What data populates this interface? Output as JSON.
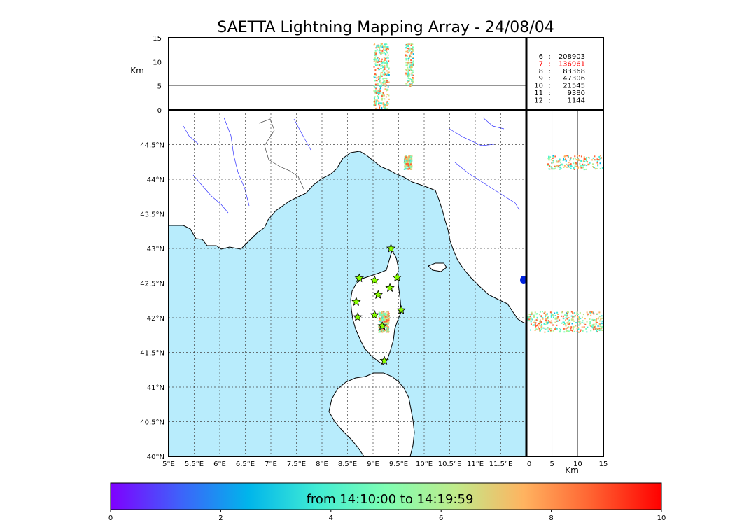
{
  "chart_data": {
    "type": "scatter",
    "title": "SAETTA Lightning Mapping Array - 24/08/04",
    "colorbar": {
      "label": "from 14:10:00 to 14:19:59",
      "range": [
        0,
        10
      ],
      "ticks": [
        "0",
        "2",
        "4",
        "6",
        "8",
        "10"
      ],
      "colormap": "rainbow",
      "colors": [
        "#7f00ff",
        "#3f61fa",
        "#00b5eb",
        "#40ecd4",
        "#7ffeb3",
        "#bfeb8b",
        "#ffb360",
        "#ff6130",
        "#ff0000"
      ]
    },
    "map_panel": {
      "xlim": [
        5.0,
        12.0
      ],
      "ylim": [
        40.0,
        45.0
      ],
      "x_ticks": [
        "5°E",
        "5.5°E",
        "6°E",
        "6.5°E",
        "7°E",
        "7.5°E",
        "8°E",
        "8.5°E",
        "9°E",
        "9.5°E",
        "10°E",
        "10.5°E",
        "11°E",
        "11.5°E"
      ],
      "y_ticks": [
        "40°N",
        "40.5°N",
        "41°N",
        "41.5°N",
        "42°N",
        "42.5°N",
        "43°N",
        "43.5°N",
        "44°N",
        "44.5°N"
      ],
      "grid": "dotted",
      "sea_color": "#b8ecfc",
      "river_color": "#3333ff",
      "stations": [
        [
          9.35,
          43.0
        ],
        [
          8.73,
          42.57
        ],
        [
          9.03,
          42.54
        ],
        [
          9.47,
          42.58
        ],
        [
          9.1,
          42.33
        ],
        [
          9.33,
          42.43
        ],
        [
          8.67,
          42.23
        ],
        [
          9.55,
          42.11
        ],
        [
          8.7,
          42.01
        ],
        [
          9.03,
          42.04
        ],
        [
          9.18,
          41.88
        ],
        [
          9.22,
          41.38
        ]
      ],
      "station_color": "#88ff00",
      "clusters": [
        {
          "lon": [
            9.1,
            9.3
          ],
          "lat": [
            41.8,
            42.1
          ]
        },
        {
          "lon": [
            9.6,
            9.75
          ],
          "lat": [
            44.15,
            44.35
          ]
        }
      ]
    },
    "altitude_lon_panel": {
      "ylabel": "Km",
      "ylim": [
        0,
        15
      ],
      "y_ticks": [
        "0",
        "5",
        "10",
        "15"
      ],
      "clusters": [
        {
          "lon": [
            9.0,
            9.3
          ],
          "alt": [
            0,
            14
          ]
        },
        {
          "lon": [
            9.62,
            9.78
          ],
          "alt": [
            5,
            14
          ]
        }
      ]
    },
    "altitude_lat_panel": {
      "xlabel": "Km",
      "xlim": [
        0,
        15
      ],
      "x_ticks": [
        "0",
        "5",
        "10",
        "15"
      ],
      "clusters": [
        {
          "lat": [
            41.8,
            42.1
          ],
          "alt": [
            0,
            15
          ]
        },
        {
          "lat": [
            44.15,
            44.35
          ],
          "alt": [
            4,
            15
          ]
        }
      ]
    },
    "station_counts": [
      {
        "stations": "6",
        "count": "208903",
        "color": "#000000"
      },
      {
        "stations": "7",
        "count": "136961",
        "color": "#ff0000"
      },
      {
        "stations": "8",
        "count": "83368",
        "color": "#000000"
      },
      {
        "stations": "9",
        "count": "47306",
        "color": "#000000"
      },
      {
        "stations": "10",
        "count": "21545",
        "color": "#000000"
      },
      {
        "stations": "11",
        "count": "9380",
        "color": "#000000"
      },
      {
        "stations": "12",
        "count": "1144",
        "color": "#000000"
      }
    ]
  }
}
